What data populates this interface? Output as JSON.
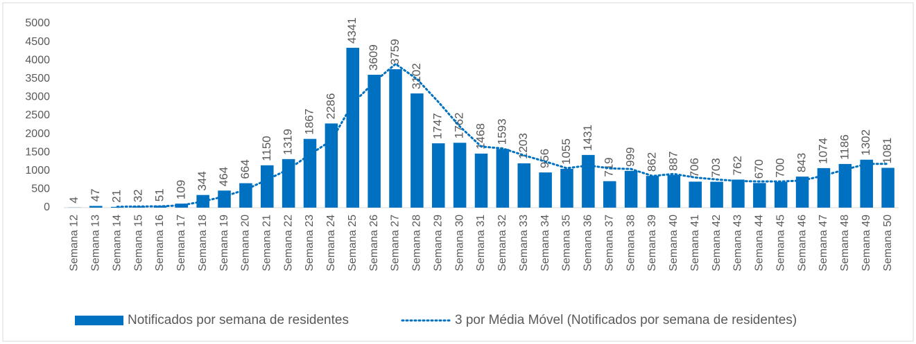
{
  "chart_data": {
    "type": "bar",
    "categories": [
      "Semana 12",
      "Semana 13",
      "Semana 14",
      "Semana 15",
      "Semana 16",
      "Semana 17",
      "Semana 18",
      "Semana 19",
      "Semana 20",
      "Semana 21",
      "Semana 22",
      "Semana 23",
      "Semana 24",
      "Semana 25",
      "Semana 26",
      "Semana 27",
      "Semana 28",
      "Semana 29",
      "Semana 30",
      "Semana 31",
      "Semana 32",
      "Semana 33",
      "Semana 34",
      "Semana 35",
      "Semana 36",
      "Semana 37",
      "Semana 38",
      "Semana 39",
      "Semana 40",
      "Semana 41",
      "Semana 42",
      "Semana 43",
      "Semana 44",
      "Semana 45",
      "Semana 46",
      "Semana 47",
      "Semana 48",
      "Semana 49",
      "Semana 50"
    ],
    "series": [
      {
        "name": "Notificados por semana de residentes",
        "color": "#0070c0",
        "type": "bar",
        "values": [
          4,
          47,
          21,
          32,
          51,
          109,
          344,
          464,
          664,
          1150,
          1319,
          1867,
          2286,
          4341,
          3609,
          3759,
          3102,
          1747,
          1762,
          1468,
          1593,
          1203,
          956,
          1055,
          1431,
          719,
          999,
          862,
          887,
          706,
          703,
          762,
          670,
          700,
          843,
          1074,
          1186,
          1302,
          1081
        ]
      },
      {
        "name": "3 por Média Móvel (Notificados por semana de residentes)",
        "color": "#0070c0",
        "type": "line",
        "dash": "dotted",
        "values": [
          null,
          null,
          24,
          33,
          35,
          64,
          168,
          306,
          491,
          759,
          1044,
          1445,
          1824,
          2831,
          3412,
          3903,
          3490,
          2869,
          2204,
          1659,
          1608,
          1421,
          1251,
          1071,
          1147,
          1068,
          1050,
          860,
          916,
          818,
          765,
          724,
          712,
          711,
          738,
          872,
          1034,
          1187,
          1190
        ]
      }
    ],
    "ylim": [
      0,
      5000
    ],
    "yticks": [
      0,
      500,
      1000,
      1500,
      2000,
      2500,
      3000,
      3500,
      4000,
      4500,
      5000
    ],
    "legend": "bottom"
  }
}
